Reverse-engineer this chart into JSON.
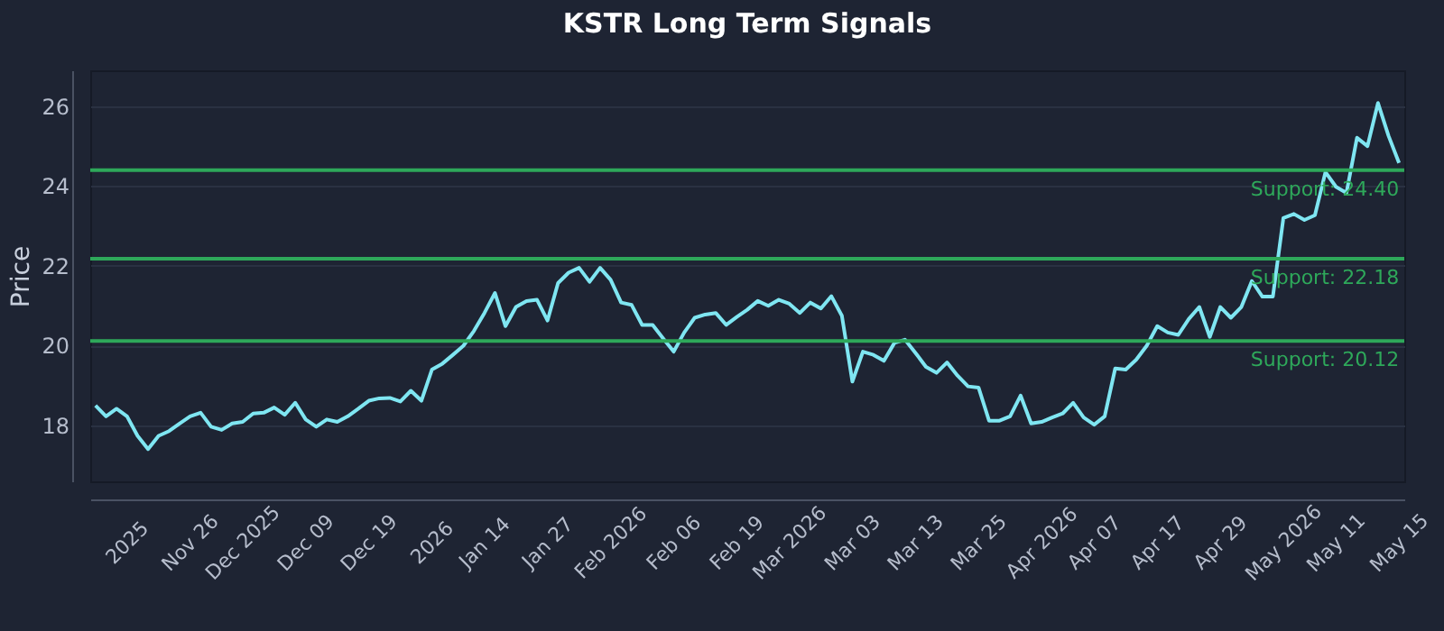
{
  "chart_data": {
    "type": "line",
    "title": "KSTR Long Term Signals",
    "ylabel": "Price",
    "categories": [
      null,
      null,
      null,
      "2025",
      null,
      null,
      null,
      null,
      null,
      "Nov 26",
      null,
      null,
      null,
      null,
      "Dec 2025",
      null,
      null,
      null,
      null,
      null,
      "Dec 09",
      null,
      null,
      null,
      null,
      null,
      "Dec 19",
      null,
      null,
      null,
      null,
      null,
      "2026",
      null,
      null,
      null,
      null,
      "Jan 14",
      null,
      null,
      null,
      null,
      null,
      "Jan 27",
      null,
      null,
      null,
      null,
      null,
      "Feb 2026",
      null,
      null,
      null,
      null,
      null,
      "Feb 06",
      null,
      null,
      null,
      null,
      null,
      "Feb 19",
      null,
      null,
      null,
      null,
      "Mar 2026",
      null,
      null,
      null,
      null,
      null,
      "Mar 03",
      null,
      null,
      null,
      null,
      null,
      "Mar 13",
      null,
      null,
      null,
      null,
      null,
      "Mar 25",
      null,
      null,
      null,
      null,
      null,
      "Apr 2026",
      null,
      null,
      null,
      null,
      "Apr 07",
      null,
      null,
      null,
      null,
      null,
      "Apr 17",
      null,
      null,
      null,
      null,
      null,
      "Apr 29",
      null,
      null,
      null,
      null,
      null,
      "May 2026",
      null,
      null,
      null,
      null,
      "May 11",
      null,
      null,
      null,
      null,
      null,
      "May 15"
    ],
    "series": [
      {
        "color": "#7fe6f2",
        "values": [
          18.5,
          18.23,
          18.42,
          18.23,
          17.74,
          17.41,
          17.74,
          17.86,
          18.05,
          18.23,
          18.32,
          17.97,
          17.89,
          18.05,
          18.09,
          18.3,
          18.32,
          18.45,
          18.27,
          18.57,
          18.15,
          17.97,
          18.15,
          18.09,
          18.23,
          18.42,
          18.62,
          18.68,
          18.69,
          18.6,
          18.87,
          18.62,
          19.4,
          19.55,
          19.77,
          20.0,
          20.37,
          20.82,
          21.32,
          20.49,
          20.97,
          21.12,
          21.15,
          20.63,
          21.57,
          21.83,
          21.95,
          21.6,
          21.95,
          21.65,
          21.08,
          21.02,
          20.52,
          20.52,
          20.18,
          19.85,
          20.33,
          20.7,
          20.78,
          20.82,
          20.52,
          20.72,
          20.9,
          21.12,
          21.0,
          21.15,
          21.05,
          20.82,
          21.08,
          20.93,
          21.24,
          20.75,
          19.1,
          19.85,
          19.77,
          19.62,
          20.07,
          20.15,
          19.82,
          19.47,
          19.32,
          19.58,
          19.25,
          18.98,
          18.95,
          18.12,
          18.12,
          18.23,
          18.75,
          18.05,
          18.09,
          18.2,
          18.3,
          18.57,
          18.2,
          18.02,
          18.23,
          19.43,
          19.4,
          19.65,
          20.0,
          20.49,
          20.33,
          20.27,
          20.67,
          20.97,
          20.22,
          20.97,
          20.7,
          20.97,
          21.62,
          21.23,
          21.23,
          23.2,
          23.3,
          23.15,
          23.27,
          24.35,
          23.98,
          23.83,
          25.21,
          25.0,
          26.08,
          25.26,
          24.58
        ]
      }
    ],
    "ylim": [
      16.6,
      26.9
    ],
    "yticks": [
      18,
      20,
      22,
      24,
      26
    ],
    "grid": "y",
    "ref_lines": [
      {
        "axis": "y",
        "value": 24.4,
        "label": "Support: 24.40",
        "color": "#2ea85a"
      },
      {
        "axis": "y",
        "value": 22.18,
        "label": "Support: 22.18",
        "color": "#2ea85a"
      },
      {
        "axis": "y",
        "value": 20.12,
        "label": "Support: 20.12",
        "color": "#2ea85a"
      }
    ]
  }
}
